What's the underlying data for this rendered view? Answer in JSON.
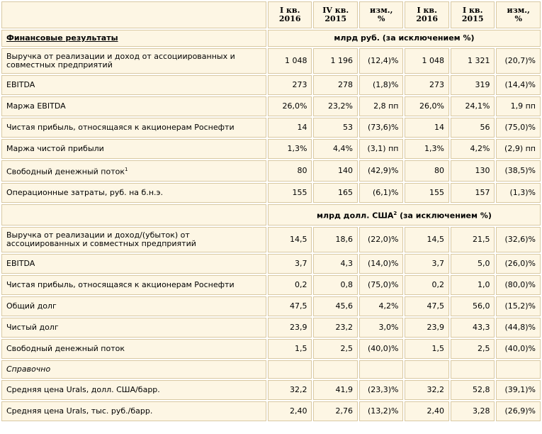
{
  "header": {
    "cols": [
      {
        "l1": "I кв.",
        "l2": "2016"
      },
      {
        "l1": "IV кв.",
        "l2": "2015"
      },
      {
        "l1": "изм.,",
        "l2": "%"
      },
      {
        "l1": "I кв.",
        "l2": "2016"
      },
      {
        "l1": "I кв.",
        "l2": "2015"
      },
      {
        "l1": "изм.,",
        "l2": "%"
      }
    ]
  },
  "section1": {
    "title": "Финансовые результаты",
    "unit": "млрд руб. (за исключением %)",
    "rows": [
      {
        "label": "Выручка от реализации и доход от ассоциированных и совместных предприятий",
        "v": [
          "1 048",
          "1 196",
          "(12,4)%",
          "1 048",
          "1 321",
          "(20,7)%"
        ]
      },
      {
        "label": "EBITDA",
        "v": [
          "273",
          "278",
          "(1,8)%",
          "273",
          "319",
          "(14,4)%"
        ]
      },
      {
        "label": "Маржа EBITDA",
        "v": [
          "26,0%",
          "23,2%",
          "2,8 пп",
          "26,0%",
          "24,1%",
          "1,9 пп"
        ]
      },
      {
        "label": "Чистая прибыль, относящаяся к акционерам Роснефти",
        "v": [
          "14",
          "53",
          "(73,6)%",
          "14",
          "56",
          "(75,0)%"
        ]
      },
      {
        "label": "Маржа чистой прибыли",
        "v": [
          "1,3%",
          "4,4%",
          "(3,1) пп",
          "1,3%",
          "4,2%",
          "(2,9) пп"
        ]
      },
      {
        "label": "Свободный денежный поток",
        "sup": "1",
        "v": [
          "80",
          "140",
          "(42,9)%",
          "80",
          "130",
          "(38,5)%"
        ]
      },
      {
        "label": "Операционные затраты, руб. на б.н.э.",
        "v": [
          "155",
          "165",
          "(6,1)%",
          "155",
          "157",
          "(1,3)%"
        ]
      }
    ]
  },
  "section2": {
    "unit_a": "млрд долл. США",
    "unit_sup": "2",
    "unit_b": " (за исключением %)",
    "rows": [
      {
        "label": "Выручка от реализации и доход/(убыток) от ассоциированных и совместных предприятий",
        "v": [
          "14,5",
          "18,6",
          "(22,0)%",
          "14,5",
          "21,5",
          "(32,6)%"
        ]
      },
      {
        "label": "EBITDA",
        "v": [
          "3,7",
          "4,3",
          "(14,0)%",
          "3,7",
          "5,0",
          "(26,0)%"
        ]
      },
      {
        "label": "Чистая прибыль, относящаяся к акционерам Роснефти",
        "v": [
          "0,2",
          "0,8",
          "(75,0)%",
          "0,2",
          "1,0",
          "(80,0)%"
        ]
      },
      {
        "label": "Общий долг",
        "v": [
          "47,5",
          "45,6",
          "4,2%",
          "47,5",
          "56,0",
          "(15,2)%"
        ]
      },
      {
        "label": "Чистый долг",
        "v": [
          "23,9",
          "23,2",
          "3,0%",
          "23,9",
          "43,3",
          "(44,8)%"
        ]
      },
      {
        "label": "Свободный денежный поток",
        "v": [
          "1,5",
          "2,5",
          "(40,0)%",
          "1,5",
          "2,5",
          "(40,0)%"
        ]
      }
    ]
  },
  "section3": {
    "title": "Справочно",
    "rows": [
      {
        "label": "Средняя цена Urals, долл. США/барр.",
        "v": [
          "32,2",
          "41,9",
          "(23,3)%",
          "32,2",
          "52,8",
          "(39,1)%"
        ]
      },
      {
        "label": "Средняя цена Urals, тыс. руб./барр.",
        "v": [
          "2,40",
          "2,76",
          "(13,2)%",
          "2,40",
          "3,28",
          "(26,9)%"
        ]
      }
    ]
  }
}
